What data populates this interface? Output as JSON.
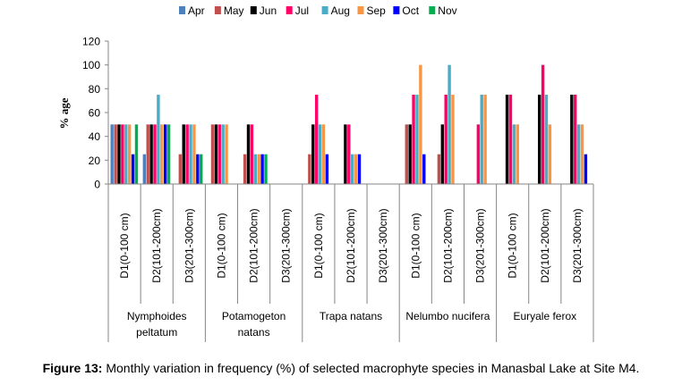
{
  "chart_data": {
    "type": "bar",
    "title": "",
    "ylabel": "% age",
    "xlabel": "",
    "ylim": [
      0,
      120
    ],
    "yticks": [
      0,
      20,
      40,
      60,
      80,
      100,
      120
    ],
    "grid": false,
    "legend_position": "top",
    "series_names": [
      "Apr",
      "May",
      "Jun",
      "Jul",
      "Aug",
      "Sep",
      "Oct",
      "Nov"
    ],
    "series_colors": [
      "#4F81BD",
      "#C0504D",
      "#000000",
      "#FF0066",
      "#4BACC6",
      "#F79646",
      "#0000FF",
      "#00B050"
    ],
    "groups": [
      {
        "species": "Nymphoides peltatum",
        "species_lines": [
          "Nymphoides",
          "peltatum"
        ],
        "depths": [
          {
            "label": "D1(0-100 cm)",
            "values": [
              50,
              50,
              50,
              50,
              50,
              50,
              25,
              50
            ]
          },
          {
            "label": "D2(101-200cm)",
            "values": [
              25,
              50,
              50,
              50,
              75,
              50,
              50,
              50
            ]
          },
          {
            "label": "D3(201-300cm)",
            "values": [
              0,
              25,
              50,
              50,
              50,
              50,
              25,
              25
            ]
          }
        ]
      },
      {
        "species": "Potamogeton natans",
        "species_lines": [
          "Potamogeton",
          "natans"
        ],
        "depths": [
          {
            "label": "D1(0-100 cm)",
            "values": [
              0,
              50,
              50,
              50,
              50,
              50,
              0,
              0
            ]
          },
          {
            "label": "D2(101-200cm)",
            "values": [
              0,
              25,
              50,
              50,
              25,
              25,
              25,
              25
            ]
          },
          {
            "label": "D3(201-300cm)",
            "values": [
              0,
              0,
              0,
              0,
              0,
              0,
              0,
              0
            ]
          }
        ]
      },
      {
        "species": "Trapa natans",
        "species_lines": [
          "Trapa natans"
        ],
        "depths": [
          {
            "label": "D1(0-100 cm)",
            "values": [
              0,
              25,
              50,
              75,
              50,
              50,
              25,
              0
            ]
          },
          {
            "label": "D2(101-200cm)",
            "values": [
              0,
              0,
              50,
              50,
              25,
              25,
              25,
              0
            ]
          },
          {
            "label": "D3(201-300cm)",
            "values": [
              0,
              0,
              0,
              0,
              0,
              0,
              0,
              0
            ]
          }
        ]
      },
      {
        "species": "Nelumbo nucifera",
        "species_lines": [
          "Nelumbo nucifera"
        ],
        "depths": [
          {
            "label": "D1(0-100 cm)",
            "values": [
              0,
              50,
              50,
              75,
              75,
              100,
              25,
              0
            ]
          },
          {
            "label": "D2(101-200cm)",
            "values": [
              0,
              25,
              50,
              75,
              100,
              75,
              0,
              0
            ]
          },
          {
            "label": "D3(201-300cm)",
            "values": [
              0,
              0,
              0,
              50,
              75,
              75,
              0,
              0
            ]
          }
        ]
      },
      {
        "species": "Euryale ferox",
        "species_lines": [
          "Euryale ferox"
        ],
        "depths": [
          {
            "label": "D1(0-100 cm)",
            "values": [
              0,
              0,
              75,
              75,
              50,
              50,
              0,
              0
            ]
          },
          {
            "label": "D2(101-200cm)",
            "values": [
              0,
              0,
              75,
              100,
              75,
              50,
              0,
              0
            ]
          },
          {
            "label": "D3(201-300cm)",
            "values": [
              0,
              0,
              75,
              75,
              50,
              50,
              25,
              0
            ]
          }
        ]
      }
    ]
  },
  "caption": {
    "prefix": "Figure 13:",
    "text": " Monthly variation in frequency (%) of selected macrophyte species in Manasbal Lake at Site M4."
  }
}
